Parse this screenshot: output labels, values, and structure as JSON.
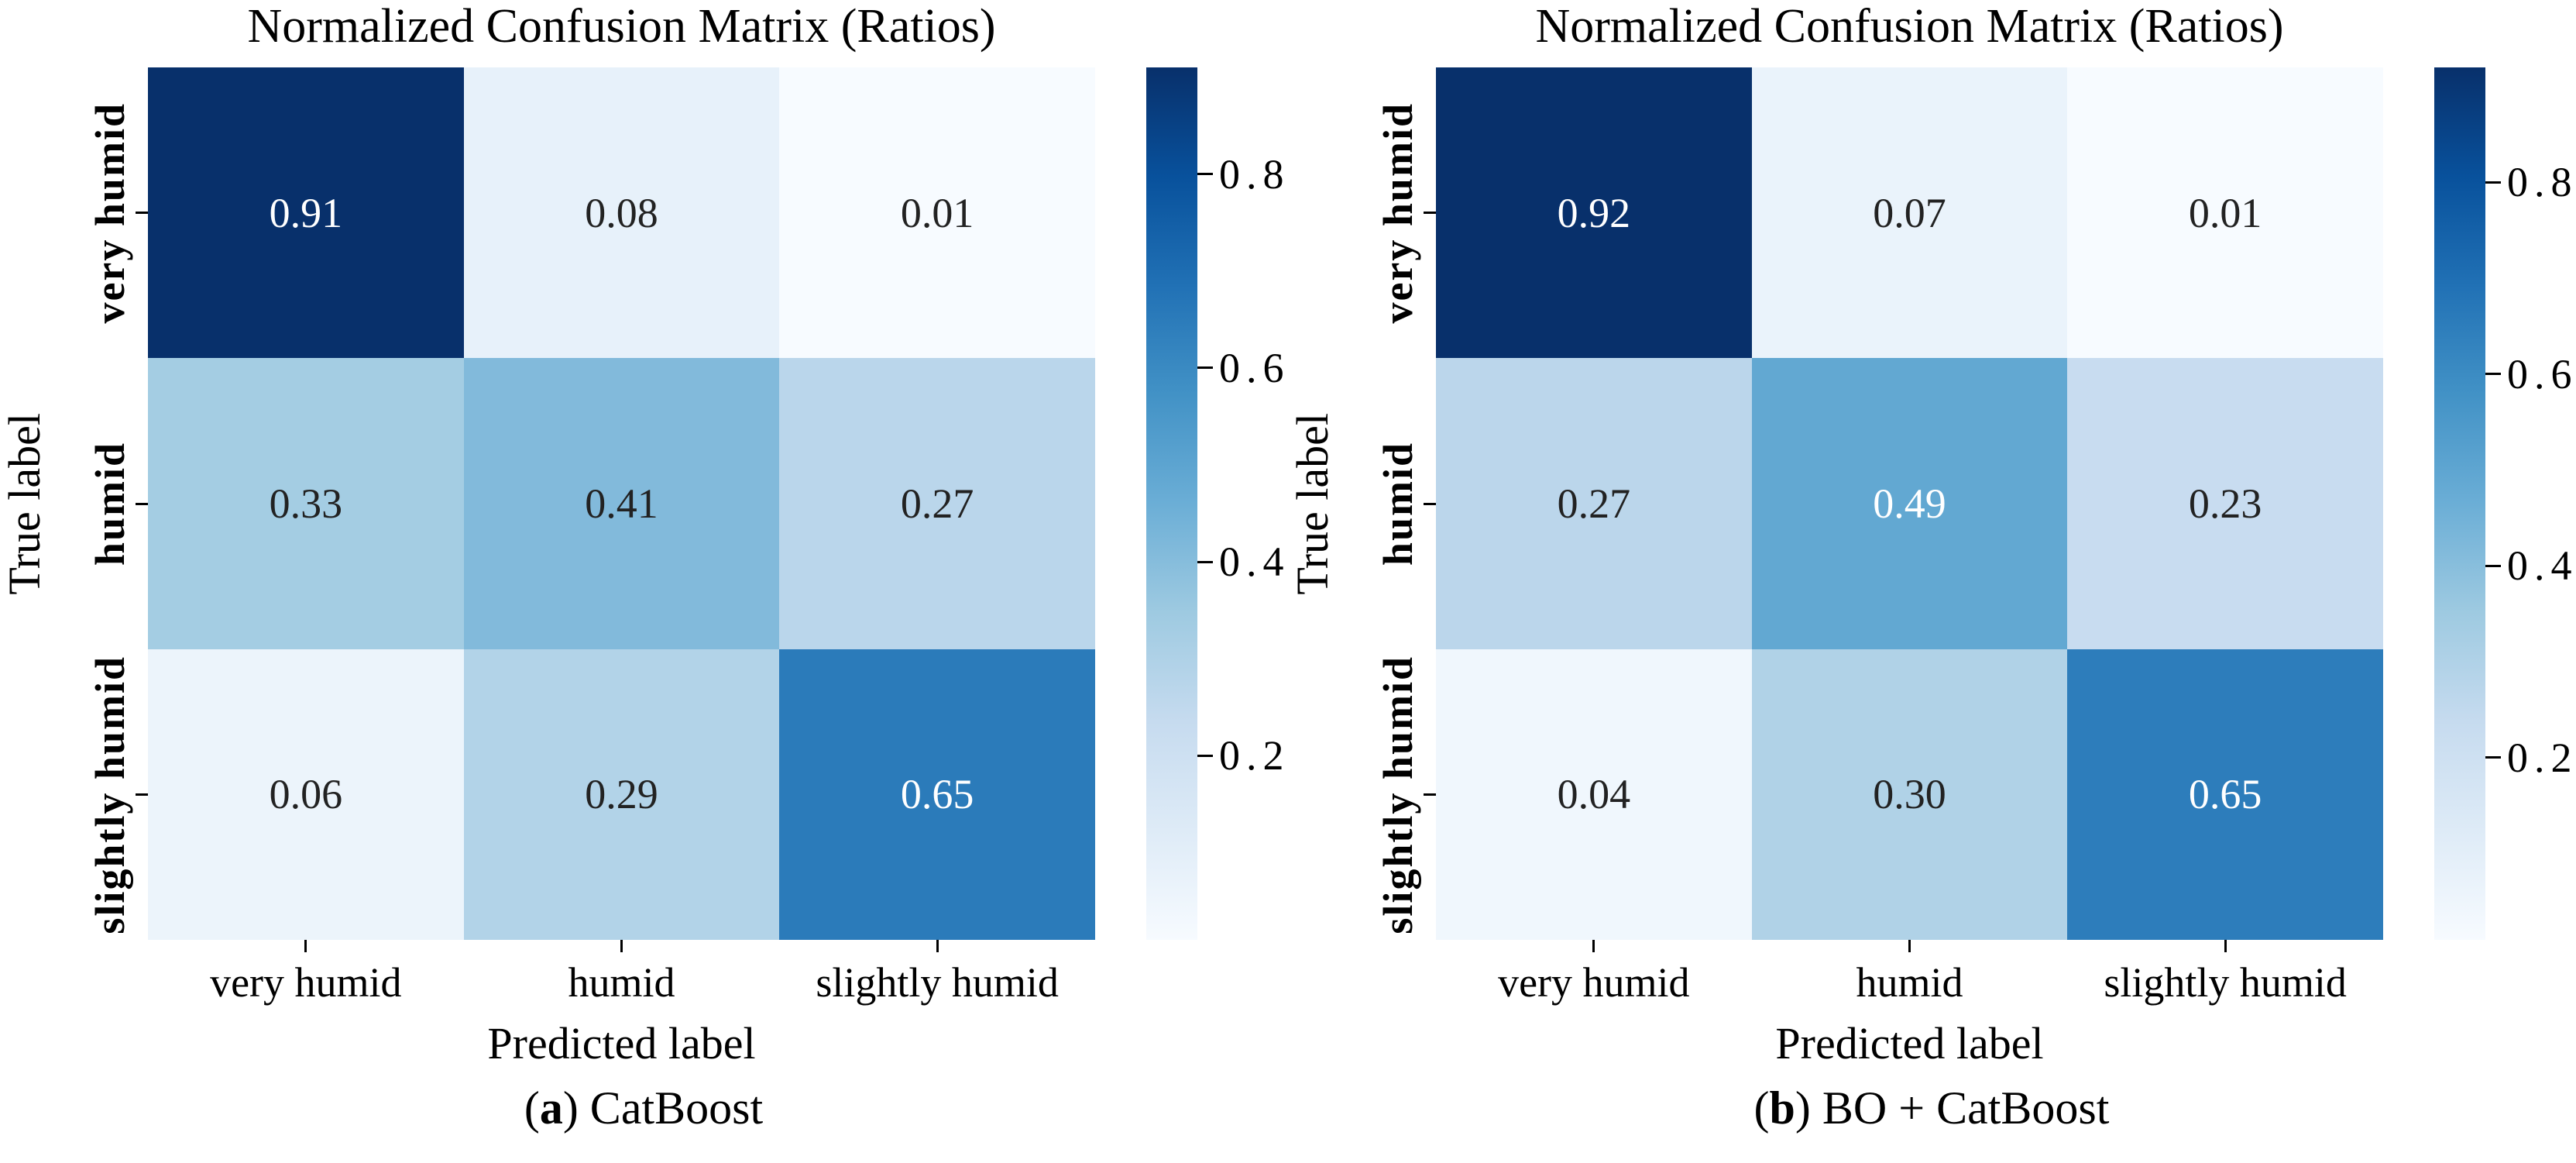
{
  "figure": {
    "background": "#ffffff",
    "colormap_name": "Blues",
    "colorbar_gradient_bottom_to_top": [
      "#f7fbff",
      "#deebf7",
      "#c6dbef",
      "#9ecae1",
      "#6baed6",
      "#4292c6",
      "#2171b5",
      "#08519c",
      "#08306b"
    ],
    "annot_dark_color": "#222222",
    "annot_light_color": "#ffffff",
    "tick_color": "#000000"
  },
  "chart_data": [
    {
      "type": "heatmap",
      "title": "Normalized Confusion Matrix (Ratios)",
      "xlabel": "Predicted label",
      "ylabel": "True label",
      "x_categories": [
        "very humid",
        "humid",
        "slightly humid"
      ],
      "y_categories": [
        "very humid",
        "humid",
        "slightly humid"
      ],
      "values": [
        [
          0.91,
          0.08,
          0.01
        ],
        [
          0.33,
          0.41,
          0.27
        ],
        [
          0.06,
          0.29,
          0.65
        ]
      ],
      "cell_colors": [
        [
          "#08306b",
          "#e7f1fa",
          "#f7fbff"
        ],
        [
          "#a4cde3",
          "#82badb",
          "#bad6eb"
        ],
        [
          "#ecf4fb",
          "#b2d3e8",
          "#2b7bba"
        ]
      ],
      "cell_text_colors": [
        [
          "#ffffff",
          "#222222",
          "#222222"
        ],
        [
          "#222222",
          "#222222",
          "#222222"
        ],
        [
          "#222222",
          "#222222",
          "#ffffff"
        ]
      ],
      "colorbar": {
        "vmin": 0.01,
        "vmax": 0.91,
        "ticks": [
          0.8,
          0.6,
          0.4,
          0.2
        ]
      },
      "caption_open": "(",
      "caption_letter": "a",
      "caption_rest": ") CatBoost"
    },
    {
      "type": "heatmap",
      "title": "Normalized Confusion Matrix (Ratios)",
      "xlabel": "Predicted label",
      "ylabel": "True label",
      "x_categories": [
        "very humid",
        "humid",
        "slightly humid"
      ],
      "y_categories": [
        "very humid",
        "humid",
        "slightly humid"
      ],
      "values": [
        [
          0.92,
          0.07,
          0.01
        ],
        [
          0.27,
          0.49,
          0.23
        ],
        [
          0.04,
          0.3,
          0.65
        ]
      ],
      "cell_colors": [
        [
          "#08306b",
          "#eaf3fb",
          "#f7fbff"
        ],
        [
          "#bbd6eb",
          "#62a8d2",
          "#c8dcf0"
        ],
        [
          "#f0f7fd",
          "#b0d2e7",
          "#2d7dbb"
        ]
      ],
      "cell_text_colors": [
        [
          "#ffffff",
          "#222222",
          "#222222"
        ],
        [
          "#222222",
          "#ffffff",
          "#222222"
        ],
        [
          "#222222",
          "#222222",
          "#ffffff"
        ]
      ],
      "colorbar": {
        "vmin": 0.01,
        "vmax": 0.92,
        "ticks": [
          0.8,
          0.6,
          0.4,
          0.2
        ]
      },
      "caption_open": "(",
      "caption_letter": "b",
      "caption_rest": ") BO + CatBoost"
    }
  ]
}
